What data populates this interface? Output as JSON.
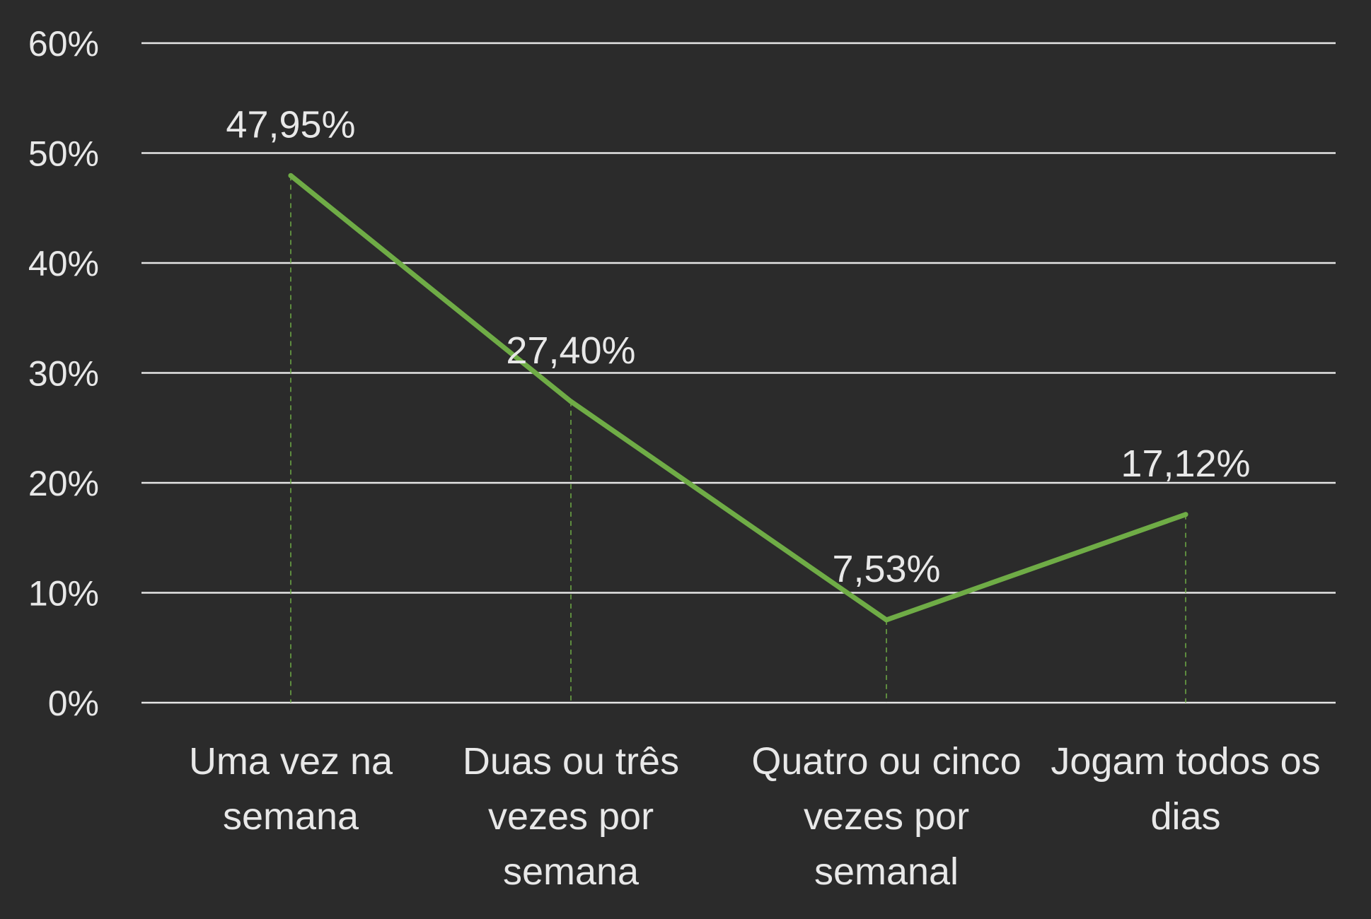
{
  "chart_data": {
    "type": "line",
    "categories": [
      [
        "Uma vez na",
        "semana"
      ],
      [
        "Duas ou três",
        "vezes por",
        "semana"
      ],
      [
        "Quatro ou cinco",
        "vezes por",
        "semanal"
      ],
      [
        "Jogam todos os",
        "dias"
      ]
    ],
    "series": [
      {
        "values": [
          47.95,
          27.4,
          7.53,
          17.12
        ],
        "data_labels": [
          "47,95%",
          "27,40%",
          "7,53%",
          "17,12%"
        ]
      }
    ],
    "y_ticks": [
      "0%",
      "10%",
      "20%",
      "30%",
      "40%",
      "50%",
      "60%"
    ],
    "ylim": [
      0,
      60
    ],
    "grid": true,
    "drop_lines": true,
    "colors": {
      "background": "#2b2b2b",
      "line": "#6fac46",
      "gridline": "#e6e6e6",
      "text": "#e8e8e8"
    }
  }
}
